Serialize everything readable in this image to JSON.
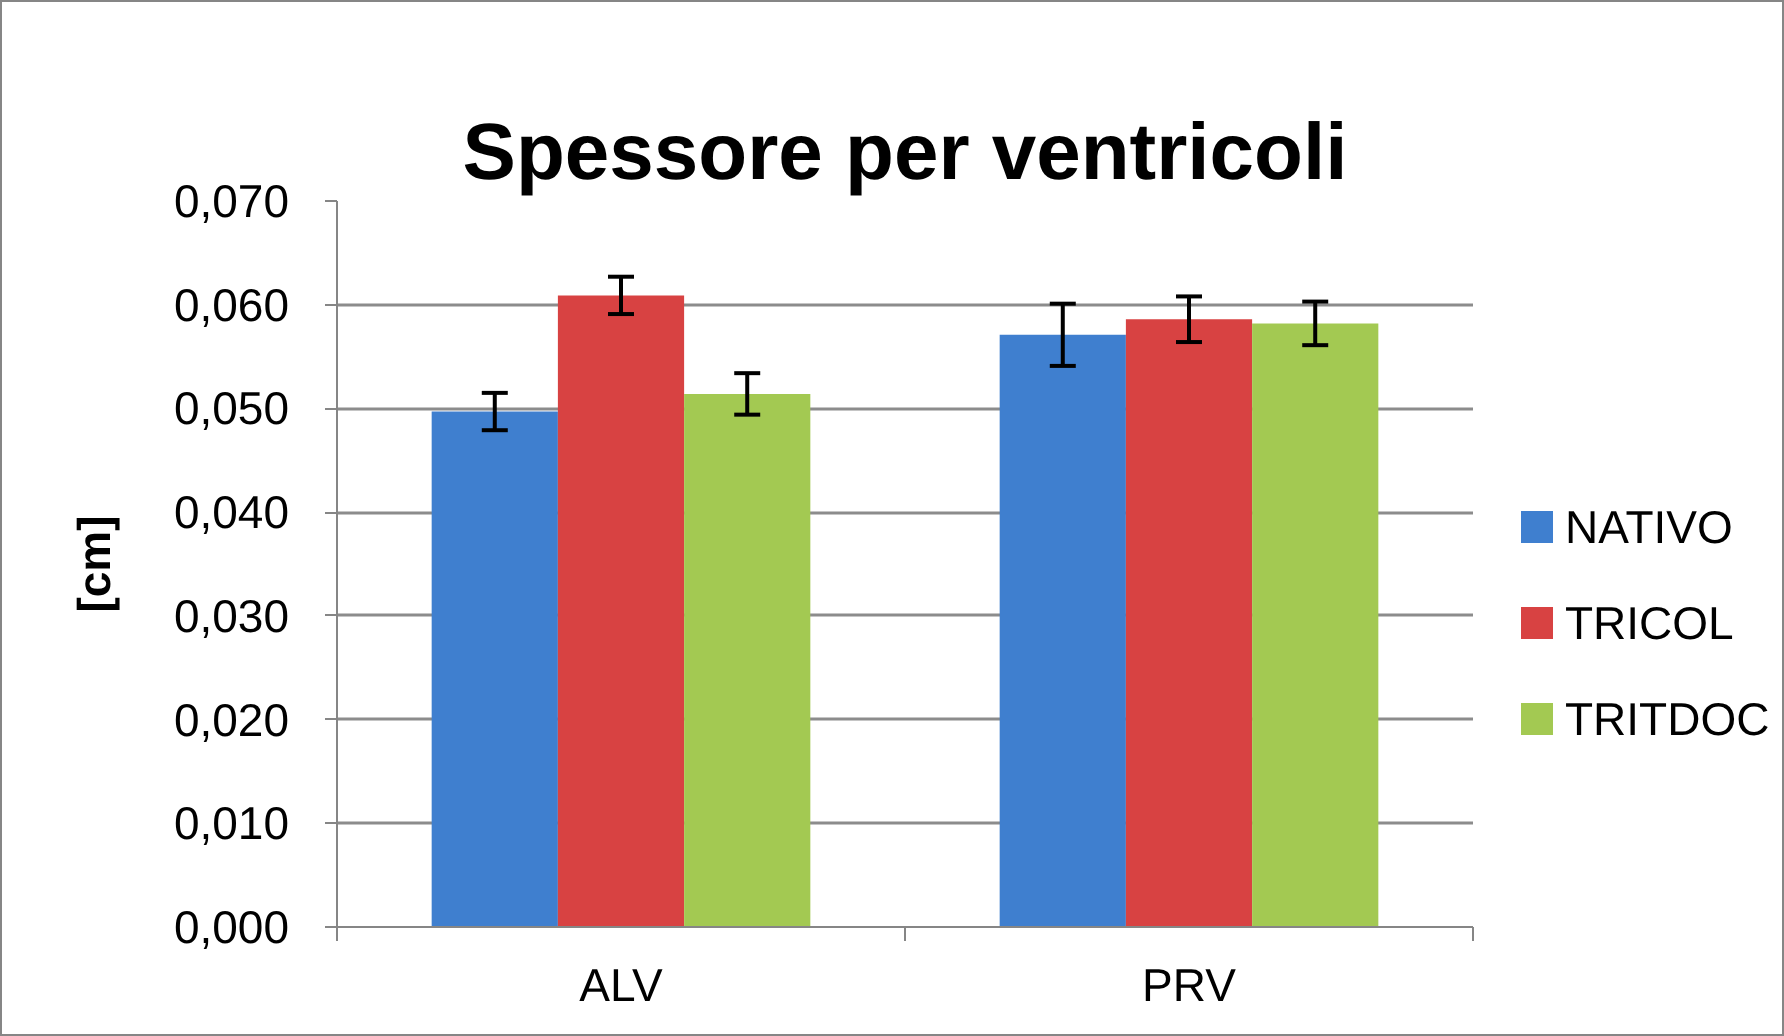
{
  "chart_data": {
    "type": "bar",
    "title": "Spessore per ventricoli",
    "ylabel": "[cm]",
    "categories": [
      "ALV",
      "PRV"
    ],
    "series": [
      {
        "name": "NATIVO",
        "color": "#3f7fcf",
        "values": [
          0.0497,
          0.0571
        ],
        "errors": [
          0.0018,
          0.003
        ]
      },
      {
        "name": "TRICOL",
        "color": "#d84242",
        "values": [
          0.0609,
          0.0586
        ],
        "errors": [
          0.0018,
          0.0022
        ]
      },
      {
        "name": "TRITDOC",
        "color": "#a3c952",
        "values": [
          0.0514,
          0.0582
        ],
        "errors": [
          0.002,
          0.0021
        ]
      }
    ],
    "ylim": [
      0,
      0.07
    ],
    "yticks": [
      {
        "value": 0,
        "label": "0,000"
      },
      {
        "value": 0.01,
        "label": "0,010"
      },
      {
        "value": 0.02,
        "label": "0,020"
      },
      {
        "value": 0.03,
        "label": "0,030"
      },
      {
        "value": 0.04,
        "label": "0,040"
      },
      {
        "value": 0.05,
        "label": "0,050"
      },
      {
        "value": 0.06,
        "label": "0,060"
      },
      {
        "value": 0.07,
        "label": "0,070"
      }
    ],
    "grid": "y",
    "legend": "right"
  }
}
